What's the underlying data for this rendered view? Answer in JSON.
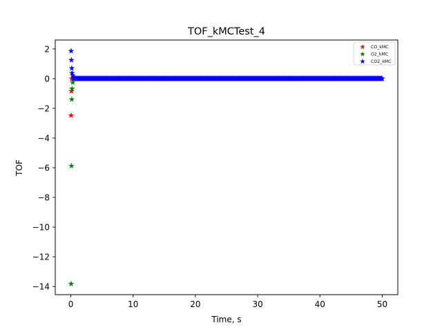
{
  "chart_data": {
    "type": "scatter",
    "title": "TOF_kMCTest_4",
    "xlabel": "Time, s",
    "ylabel": "TOF",
    "xlim": [
      -2.5,
      52.5
    ],
    "ylim": [
      -14.55,
      2.6
    ],
    "xticks": [
      0,
      10,
      20,
      30,
      40,
      50
    ],
    "yticks": [
      2,
      0,
      -2,
      -4,
      -6,
      -8,
      -10,
      -12,
      -14
    ],
    "tick_labels_x": [
      "0",
      "10",
      "20",
      "30",
      "40",
      "50"
    ],
    "tick_labels_y": [
      "2",
      "0",
      "−2",
      "−4",
      "−6",
      "−8",
      "−10",
      "−12",
      "−14"
    ],
    "marker": "star",
    "grid": false,
    "legend_position": "upper-right",
    "series": [
      {
        "name": "CO_kMC",
        "color": "#ff0000",
        "points": [
          [
            0.05,
            -2.48
          ],
          [
            0.1,
            -0.85
          ],
          [
            0.15,
            0.0
          ],
          [
            0.25,
            0.0
          ],
          [
            0.4,
            0.0
          ],
          [
            0.6,
            0.0
          ],
          [
            0.9,
            0.0
          ]
        ]
      },
      {
        "name": "O2_kMC",
        "color": "#008000",
        "points": [
          [
            0.05,
            -13.82
          ],
          [
            0.1,
            -5.88
          ],
          [
            0.15,
            -1.4
          ],
          [
            0.2,
            -0.68
          ],
          [
            0.3,
            -0.26
          ],
          [
            0.45,
            0.0
          ],
          [
            0.7,
            0.0
          ]
        ]
      },
      {
        "name": "CO2_kMC",
        "color": "#0000ff",
        "points": [
          [
            0.05,
            1.86
          ],
          [
            0.1,
            1.25
          ],
          [
            0.15,
            0.7
          ],
          [
            0.2,
            0.38
          ],
          [
            0.3,
            0.22
          ],
          [
            0.45,
            0.1
          ]
        ],
        "dense_segment": {
          "x_start": 0.5,
          "x_end": 50.0,
          "step": 0.1,
          "y": 0.0
        }
      }
    ]
  }
}
